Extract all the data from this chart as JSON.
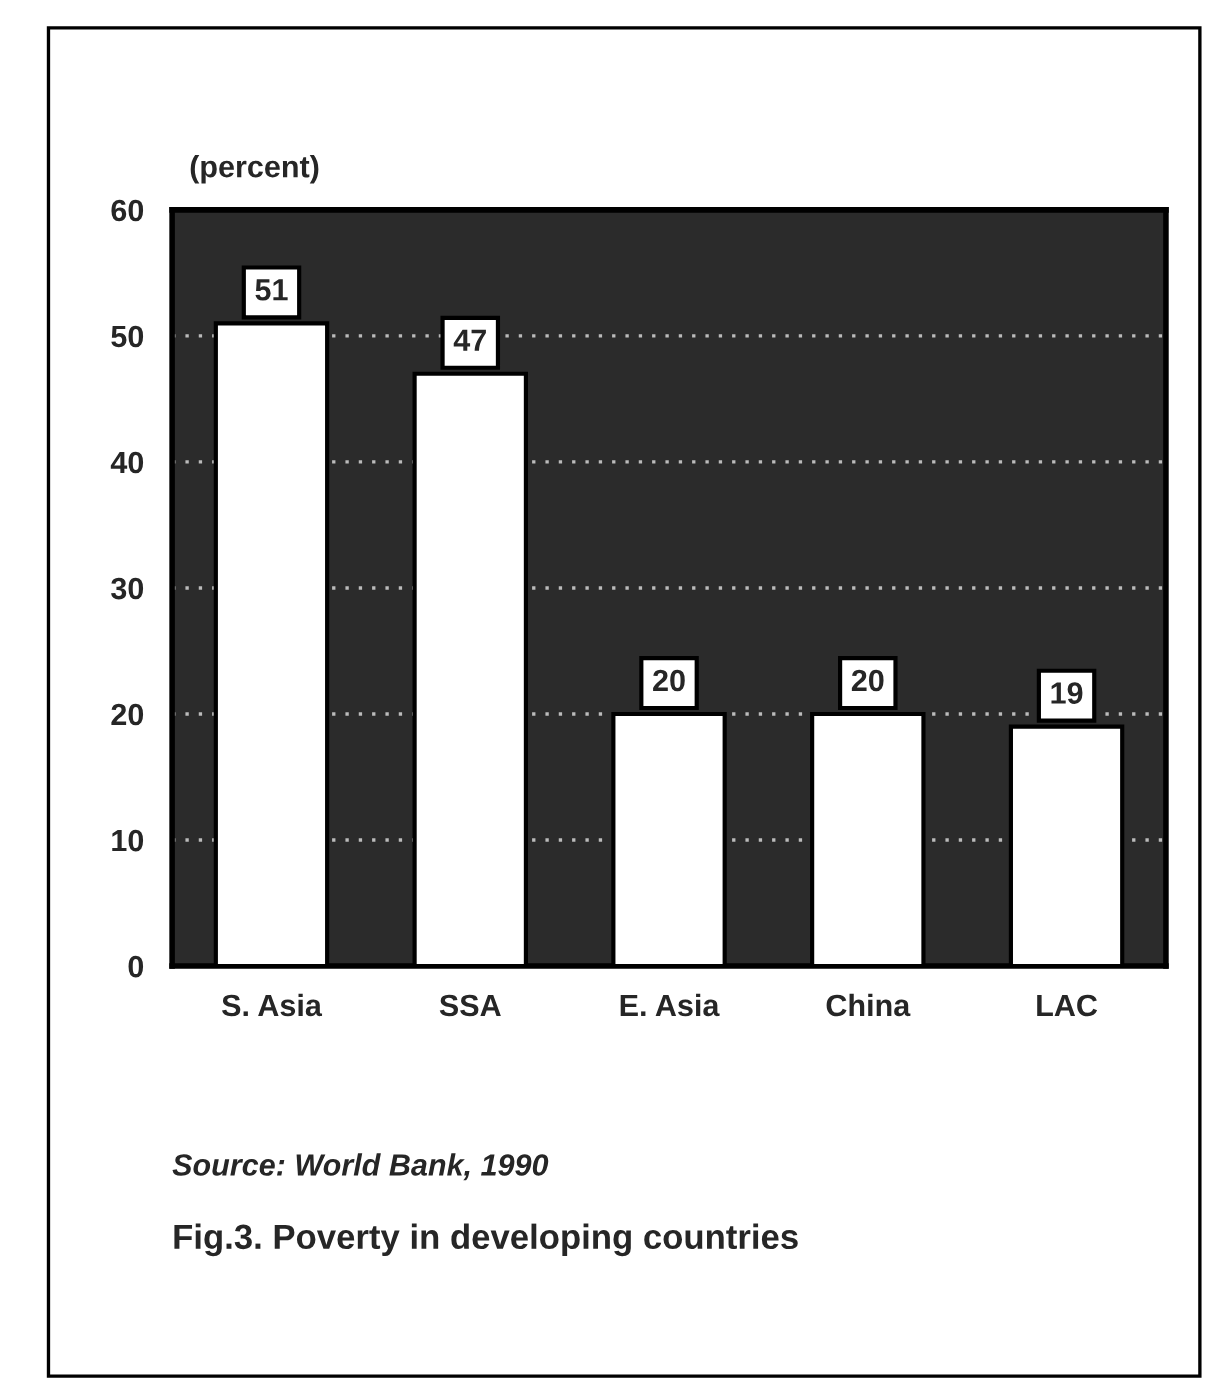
{
  "chart_data": {
    "type": "bar",
    "ylabel": "(percent)",
    "categories": [
      "S. Asia",
      "SSA",
      "E. Asia",
      "China",
      "LAC"
    ],
    "values": [
      51,
      47,
      20,
      20,
      19
    ],
    "color": "#ffffff",
    "ylim": [
      0,
      60
    ],
    "yticks": [
      0,
      10,
      20,
      30,
      40,
      50,
      60
    ],
    "grid": "y",
    "data_labels": true,
    "annotations": [
      "Source: World Bank, 1990",
      "Fig.3. Poverty in developing countries"
    ]
  }
}
